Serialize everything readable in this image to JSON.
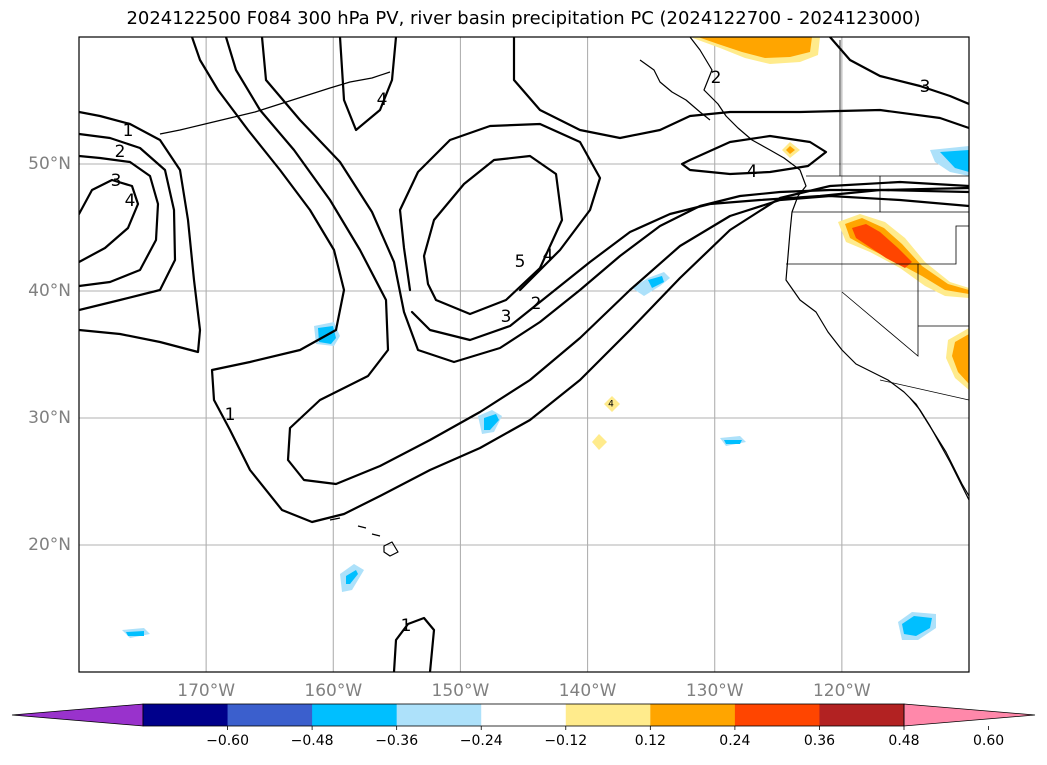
{
  "title": "2024122500 F084 300 hPa PV, river basin precipitation PC (2024122700 - 2024123000)",
  "map": {
    "lon_range": [
      -180,
      -110
    ],
    "lat_range": [
      10,
      60
    ],
    "gridlines": true,
    "lat_ticks": [
      {
        "value": 50,
        "label": "50°N"
      },
      {
        "value": 40,
        "label": "40°N"
      },
      {
        "value": 30,
        "label": "30°N"
      },
      {
        "value": 20,
        "label": "20°N"
      }
    ],
    "lon_ticks": [
      {
        "value": -170,
        "label": "170°W"
      },
      {
        "value": -160,
        "label": "160°W"
      },
      {
        "value": -150,
        "label": "150°W"
      },
      {
        "value": -140,
        "label": "140°W"
      },
      {
        "value": -130,
        "label": "130°W"
      },
      {
        "value": -120,
        "label": "120°W"
      }
    ],
    "pv_contour_labels": [
      "1",
      "2",
      "3",
      "4",
      "5",
      "4",
      "3",
      "2",
      "1",
      "1",
      "4",
      "3",
      "2",
      "4"
    ],
    "small_label": "4"
  },
  "colorbar": {
    "colors": [
      "#9932CC",
      "#00008B",
      "#3B5FCD",
      "#00BFFF",
      "#ADE1FA",
      "#FFFFFF",
      "#FFEB8C",
      "#FFA500",
      "#FF4500",
      "#B22222",
      "#FF88AA"
    ],
    "ticks": [
      "−0.60",
      "−0.48",
      "−0.36",
      "−0.24",
      "−0.12",
      "0.12",
      "0.24",
      "0.36",
      "0.48",
      "0.60"
    ],
    "extend": "both"
  }
}
